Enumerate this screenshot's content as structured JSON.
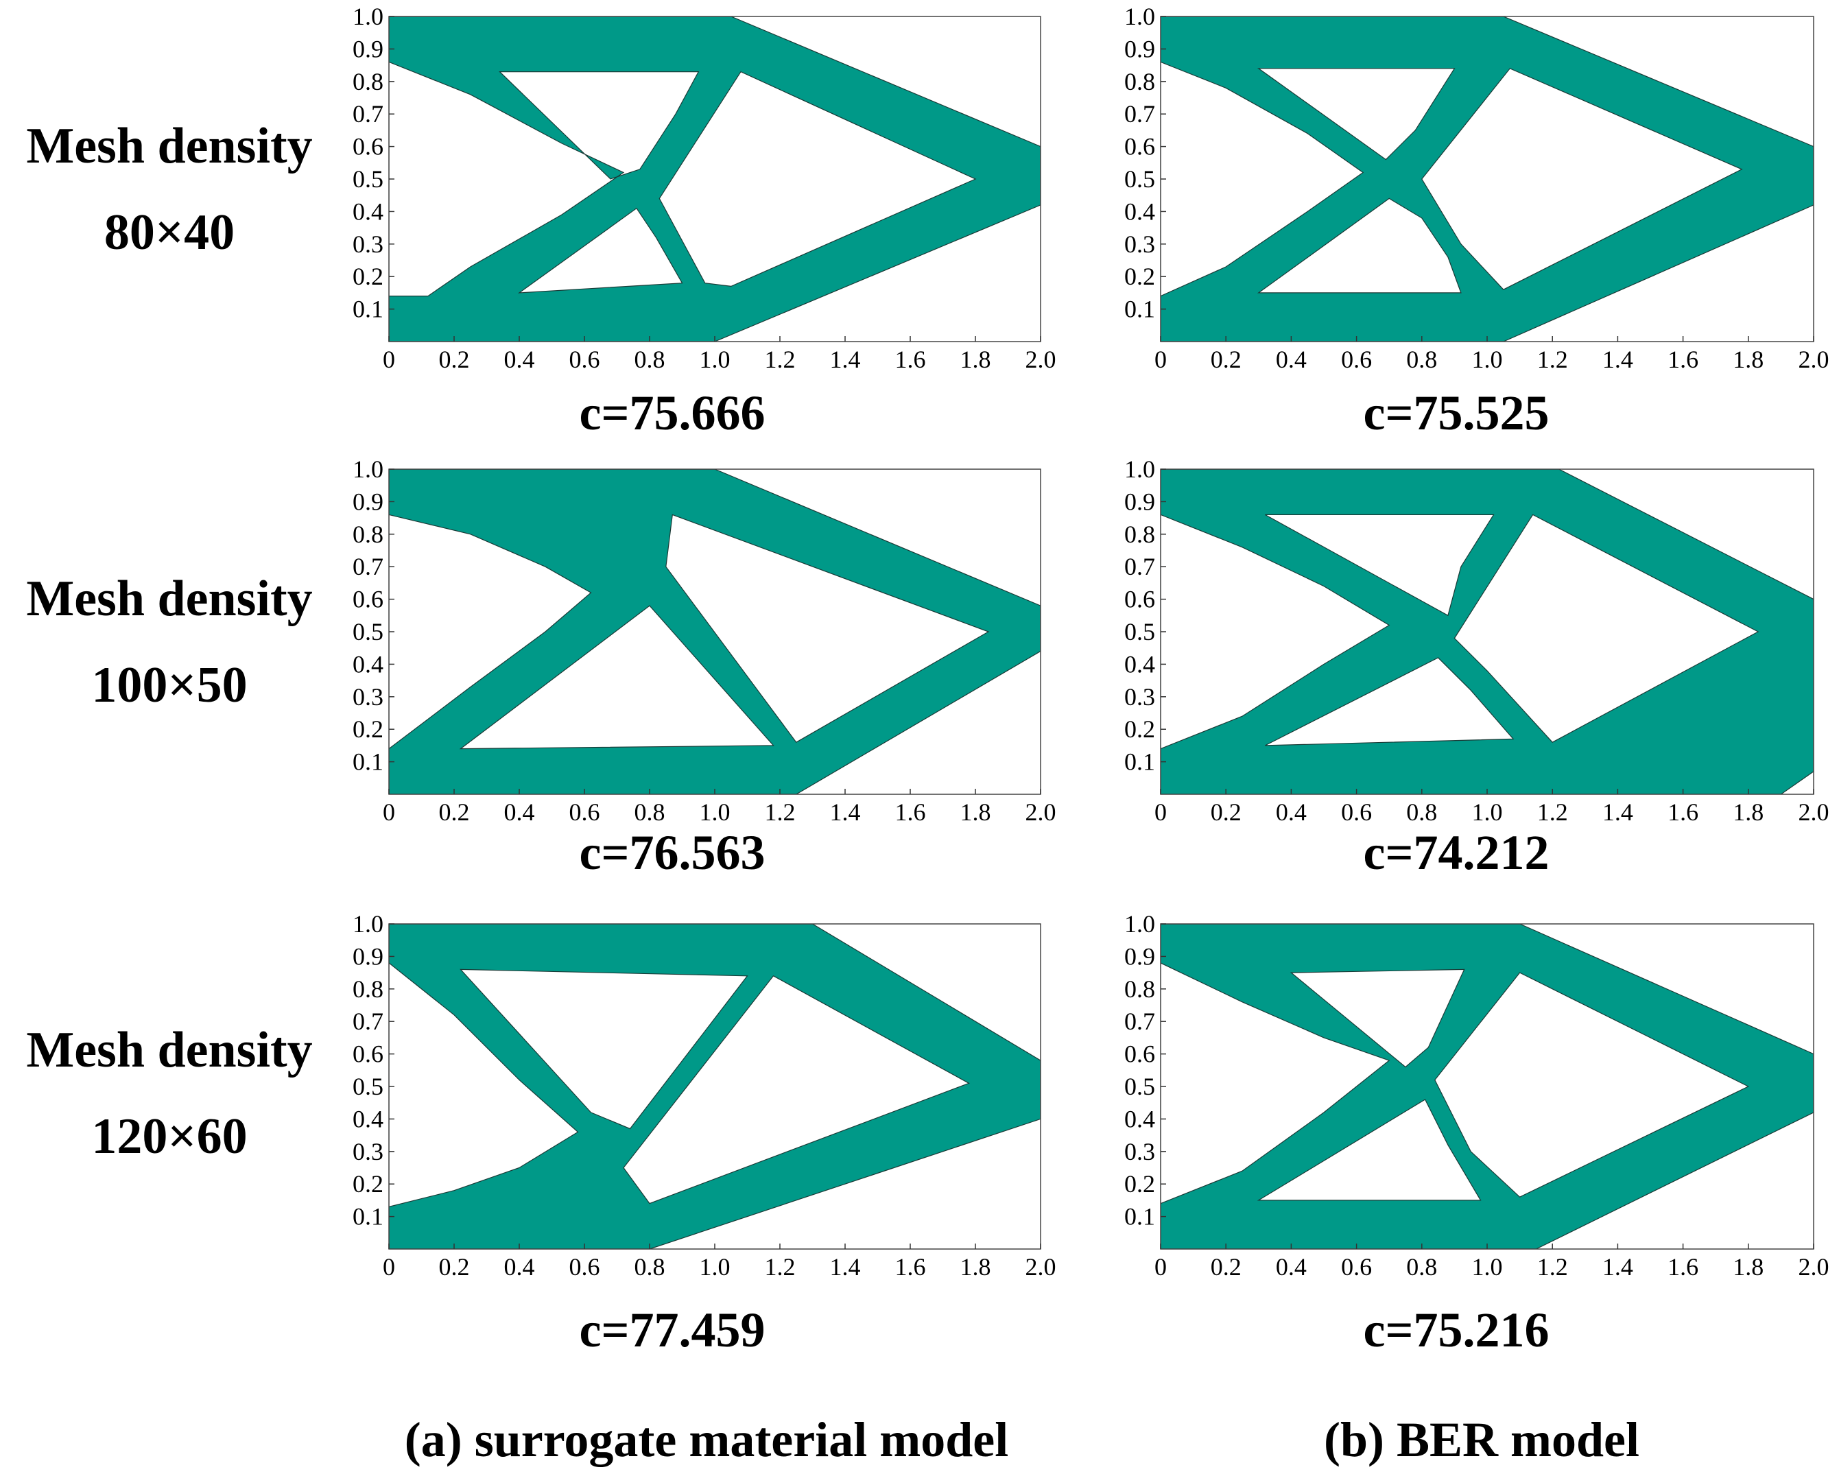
{
  "accent_color": "#009988",
  "row_labels": [
    {
      "line1": "Mesh density",
      "line2": "80×40"
    },
    {
      "line1": "Mesh density",
      "line2": "100×50"
    },
    {
      "line1": "Mesh density",
      "line2": "120×60"
    }
  ],
  "column_captions": [
    "(a) surrogate material model",
    "(b) BER  model"
  ],
  "compliance_values": {
    "a": [
      "c=75.666",
      "c=76.563",
      "c=77.459"
    ],
    "b": [
      "c=75.525",
      "c=74.212",
      "c=75.216"
    ]
  },
  "chart_data": {
    "type": "topology-optimization-panels",
    "panels": 6,
    "xlim": [
      0,
      2.0
    ],
    "ylim": [
      0,
      1.0
    ],
    "x_ticks": [
      "0",
      "0.2",
      "0.4",
      "0.6",
      "0.8",
      "1.0",
      "1.2",
      "1.4",
      "1.6",
      "1.8",
      "2.0"
    ],
    "y_ticks": [
      "0.1",
      "0.2",
      "0.3",
      "0.4",
      "0.5",
      "0.6",
      "0.7",
      "0.8",
      "0.9",
      "1.0"
    ]
  }
}
